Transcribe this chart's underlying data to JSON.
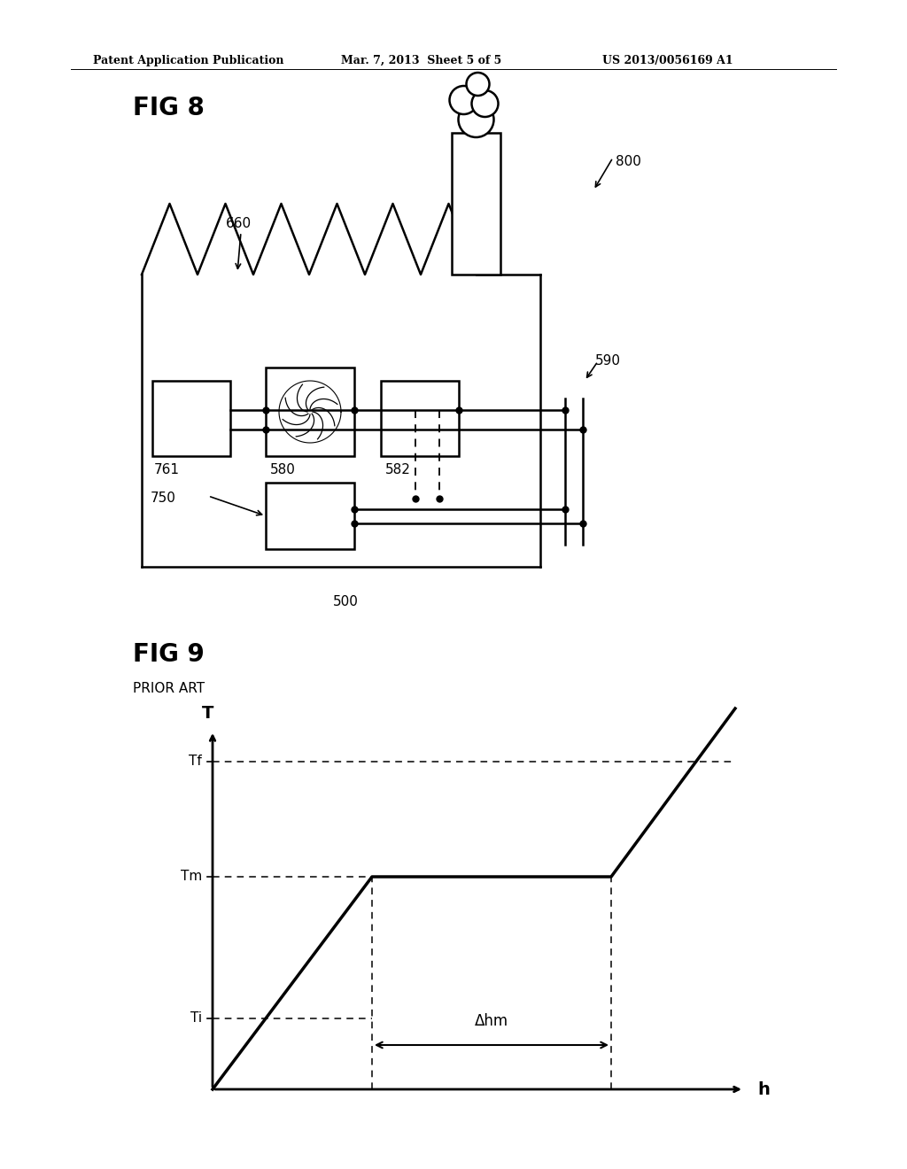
{
  "bg_color": "#ffffff",
  "header_left": "Patent Application Publication",
  "header_mid": "Mar. 7, 2013  Sheet 5 of 5",
  "header_right": "US 2013/0056169 A1",
  "fig8_label": "FIG 8",
  "fig9_label": "FIG 9",
  "fig9_sublabel": "PRIOR ART",
  "label_800": "800",
  "label_660": "660",
  "label_590": "590",
  "label_761": "761",
  "label_580": "580",
  "label_582": "582",
  "label_750": "750",
  "label_500": "500",
  "graph_T": "T",
  "graph_h": "h",
  "graph_Tf": "Tf",
  "graph_Tm": "Tm",
  "graph_Ti": "Ti",
  "graph_delta_hm": "Δhm",
  "line_color": "#000000"
}
